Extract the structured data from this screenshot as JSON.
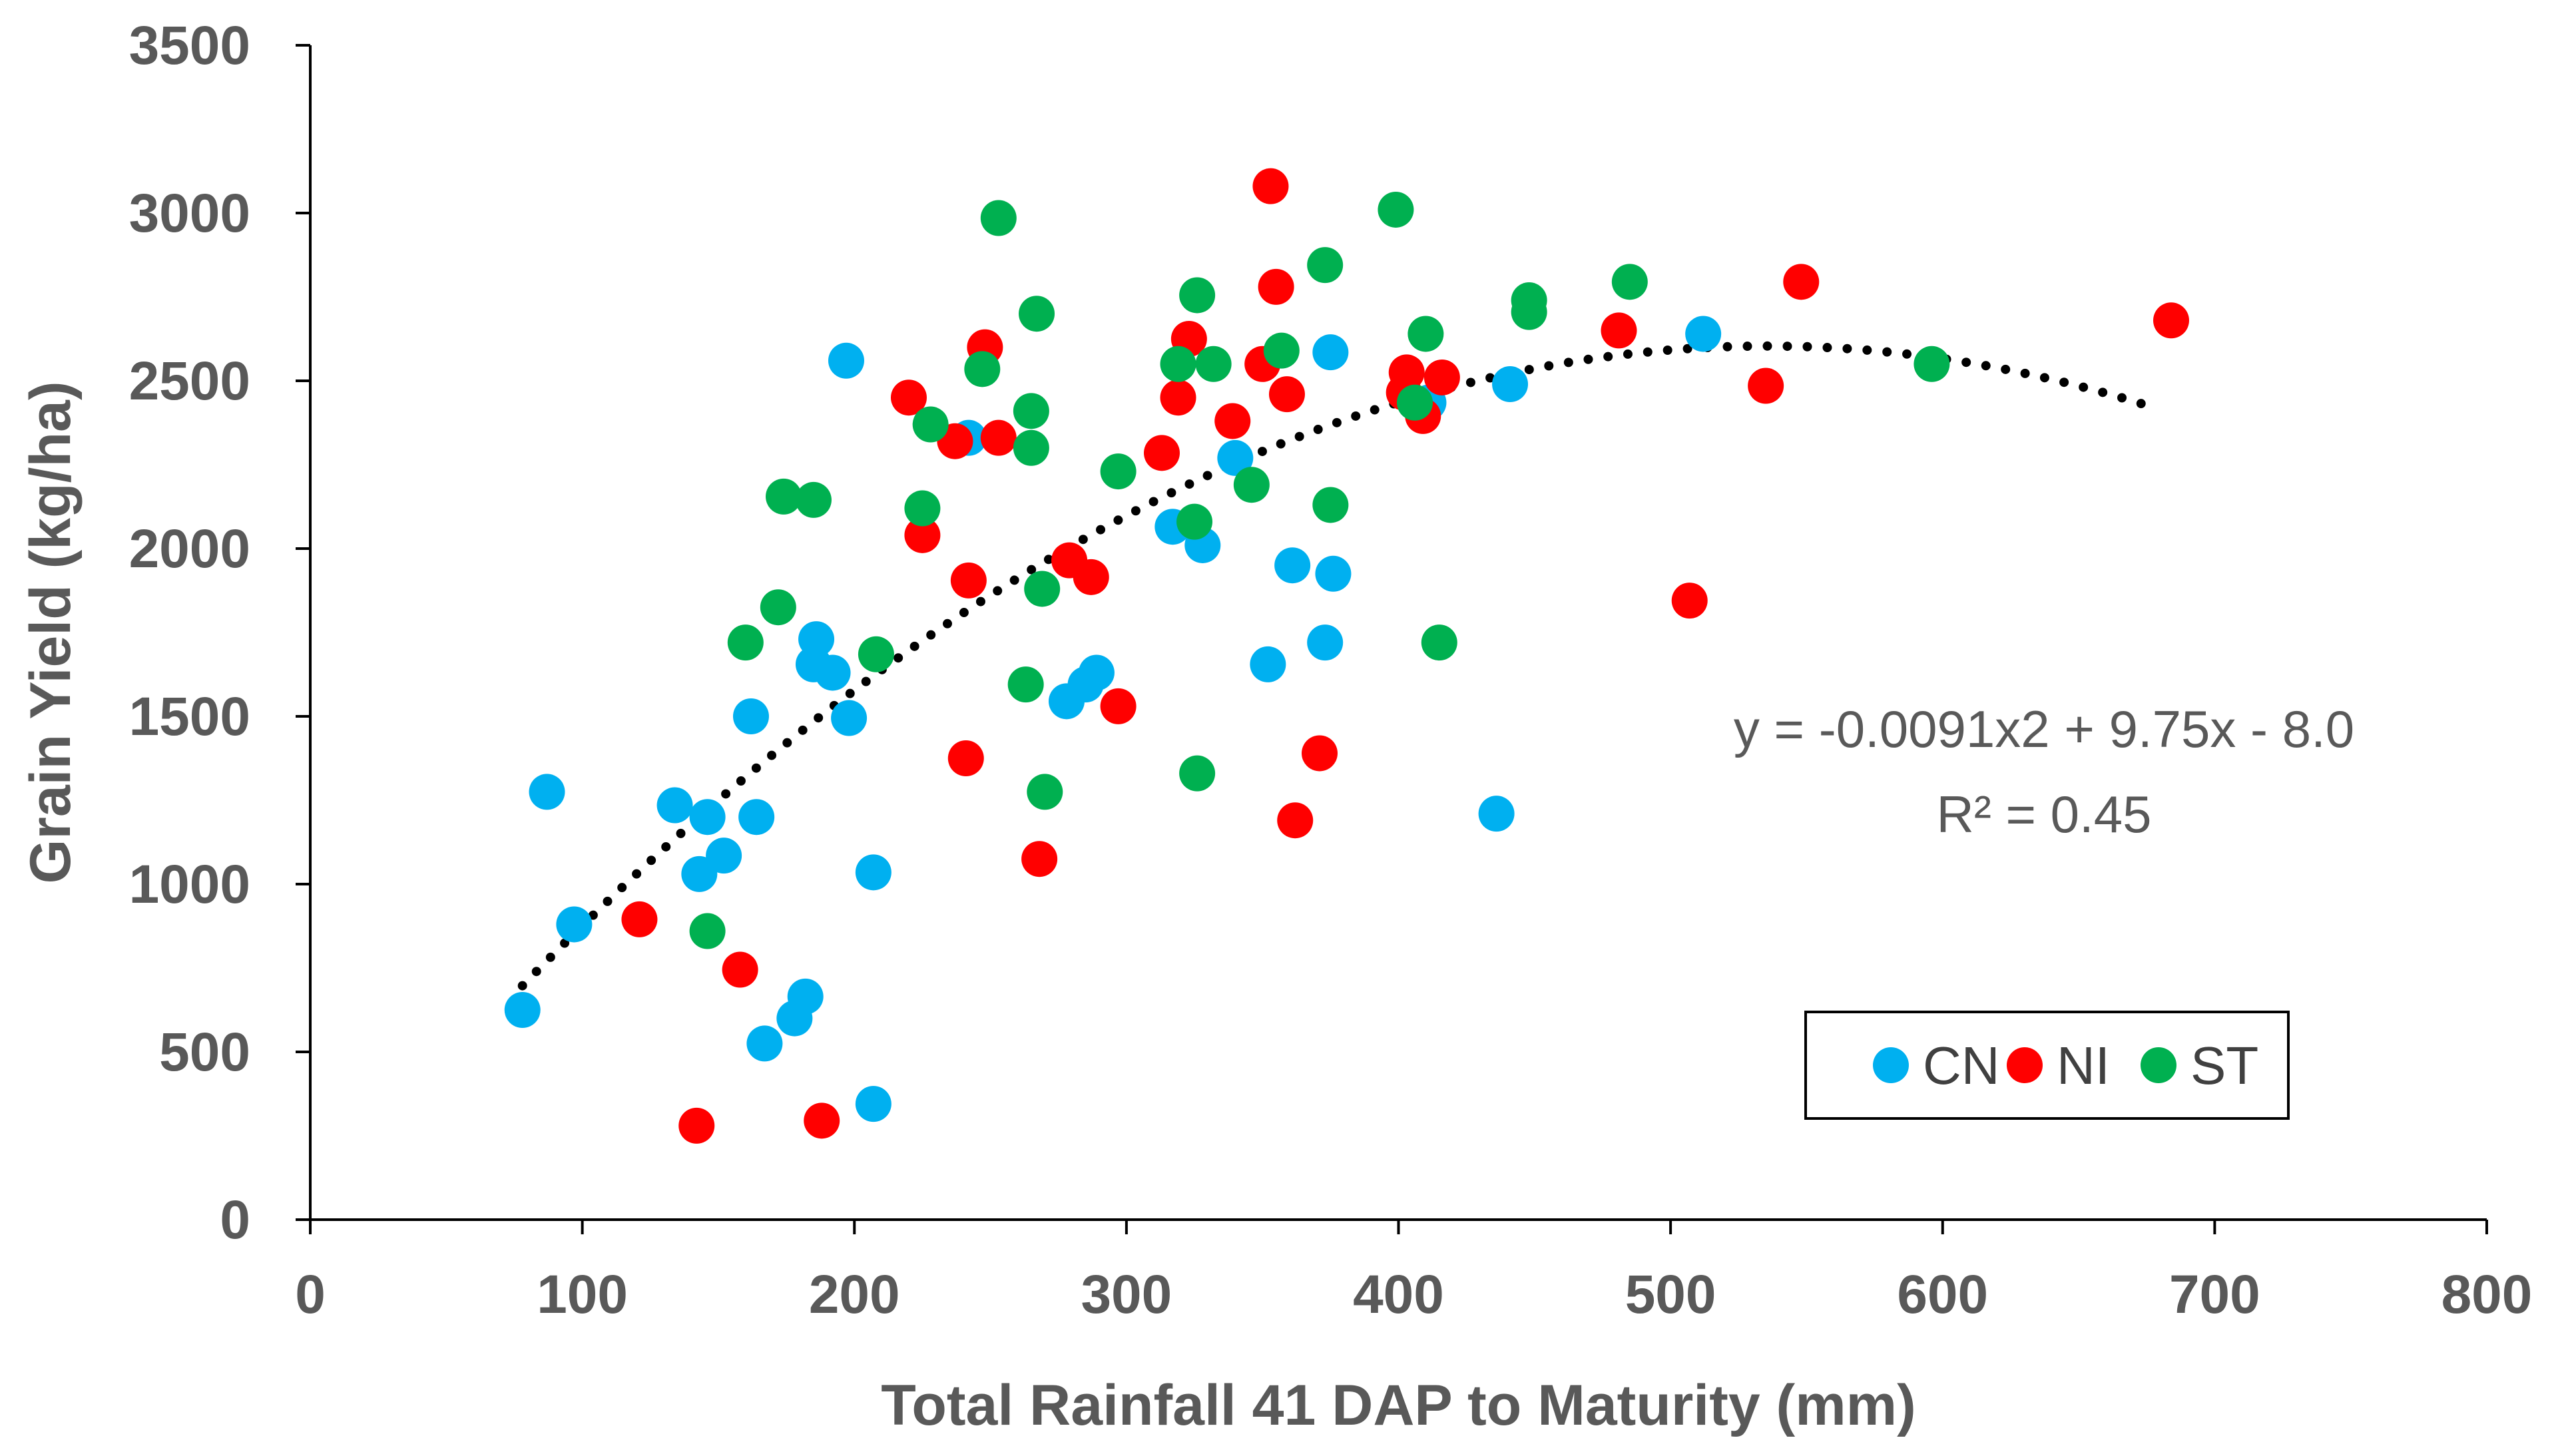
{
  "chart_data": {
    "type": "scatter",
    "title": "",
    "xlabel": "Total Rainfall 41 DAP to Maturity (mm)",
    "ylabel": "Grain Yield (kg/ha)",
    "xlim": [
      0,
      800
    ],
    "ylim": [
      0,
      3500
    ],
    "xticks": [
      0,
      100,
      200,
      300,
      400,
      500,
      600,
      700,
      800
    ],
    "yticks": [
      0,
      500,
      1000,
      1500,
      2000,
      2500,
      3000,
      3500
    ],
    "grid": false,
    "legend_position": "bottom-right",
    "series": [
      {
        "name": "CN",
        "color": "#00B0F0",
        "points": [
          [
            78,
            625
          ],
          [
            87,
            1275
          ],
          [
            97,
            880
          ],
          [
            134,
            1235
          ],
          [
            143,
            1030
          ],
          [
            146,
            1200
          ],
          [
            152,
            1085
          ],
          [
            162,
            1500
          ],
          [
            164,
            1200
          ],
          [
            167,
            525
          ],
          [
            178,
            600
          ],
          [
            182,
            665
          ],
          [
            185,
            1655
          ],
          [
            186,
            1730
          ],
          [
            192,
            1630
          ],
          [
            197,
            2560
          ],
          [
            198,
            1495
          ],
          [
            207,
            1035
          ],
          [
            207,
            345
          ],
          [
            242,
            2330
          ],
          [
            278,
            1545
          ],
          [
            285,
            1595
          ],
          [
            289,
            1630
          ],
          [
            317,
            2065
          ],
          [
            328,
            2010
          ],
          [
            340,
            2270
          ],
          [
            352,
            1655
          ],
          [
            361,
            1950
          ],
          [
            373,
            1720
          ],
          [
            375,
            2585
          ],
          [
            376,
            1925
          ],
          [
            411,
            2435
          ],
          [
            436,
            1210
          ],
          [
            441,
            2490
          ],
          [
            512,
            2640
          ]
        ]
      },
      {
        "name": "NI",
        "color": "#FF0000",
        "points": [
          [
            121,
            895
          ],
          [
            142,
            280
          ],
          [
            158,
            745
          ],
          [
            188,
            295
          ],
          [
            220,
            2450
          ],
          [
            225,
            2040
          ],
          [
            237,
            2320
          ],
          [
            241,
            1375
          ],
          [
            242,
            1905
          ],
          [
            248,
            2600
          ],
          [
            253,
            2330
          ],
          [
            268,
            1075
          ],
          [
            279,
            1965
          ],
          [
            287,
            1915
          ],
          [
            297,
            1530
          ],
          [
            313,
            2285
          ],
          [
            319,
            2450
          ],
          [
            323,
            2625
          ],
          [
            339,
            2380
          ],
          [
            350,
            2550
          ],
          [
            353,
            3080
          ],
          [
            355,
            2780
          ],
          [
            359,
            2460
          ],
          [
            362,
            1190
          ],
          [
            371,
            1390
          ],
          [
            402,
            2465
          ],
          [
            403,
            2525
          ],
          [
            409,
            2395
          ],
          [
            416,
            2510
          ],
          [
            481,
            2650
          ],
          [
            507,
            1845
          ],
          [
            535,
            2485
          ],
          [
            548,
            2795
          ],
          [
            684,
            2680
          ]
        ]
      },
      {
        "name": "ST",
        "color": "#00B050",
        "points": [
          [
            146,
            860
          ],
          [
            160,
            1720
          ],
          [
            172,
            1825
          ],
          [
            174,
            2155
          ],
          [
            185,
            2145
          ],
          [
            208,
            1685
          ],
          [
            225,
            2120
          ],
          [
            228,
            2370
          ],
          [
            247,
            2535
          ],
          [
            253,
            2985
          ],
          [
            263,
            1595
          ],
          [
            265,
            2410
          ],
          [
            265,
            2300
          ],
          [
            267,
            2700
          ],
          [
            269,
            1880
          ],
          [
            270,
            1275
          ],
          [
            297,
            2230
          ],
          [
            319,
            2550
          ],
          [
            325,
            2080
          ],
          [
            326,
            1330
          ],
          [
            326,
            2755
          ],
          [
            332,
            2550
          ],
          [
            346,
            2190
          ],
          [
            357,
            2590
          ],
          [
            373,
            2845
          ],
          [
            375,
            2130
          ],
          [
            399,
            3010
          ],
          [
            406,
            2435
          ],
          [
            410,
            2640
          ],
          [
            415,
            1720
          ],
          [
            448,
            2740
          ],
          [
            448,
            2705
          ],
          [
            485,
            2795
          ],
          [
            596,
            2550
          ]
        ]
      }
    ],
    "trendline": {
      "type": "polynomial",
      "order": 2,
      "style": "dotted",
      "color": "#000000",
      "x_range": [
        78,
        680
      ],
      "coefficients": {
        "a": -0.0091,
        "b": 9.75,
        "c": -8.0
      }
    },
    "annotations": {
      "equation": "y = -0.0091x2 + 9.75x - 8.0",
      "r_squared": "R² = 0.45"
    }
  }
}
